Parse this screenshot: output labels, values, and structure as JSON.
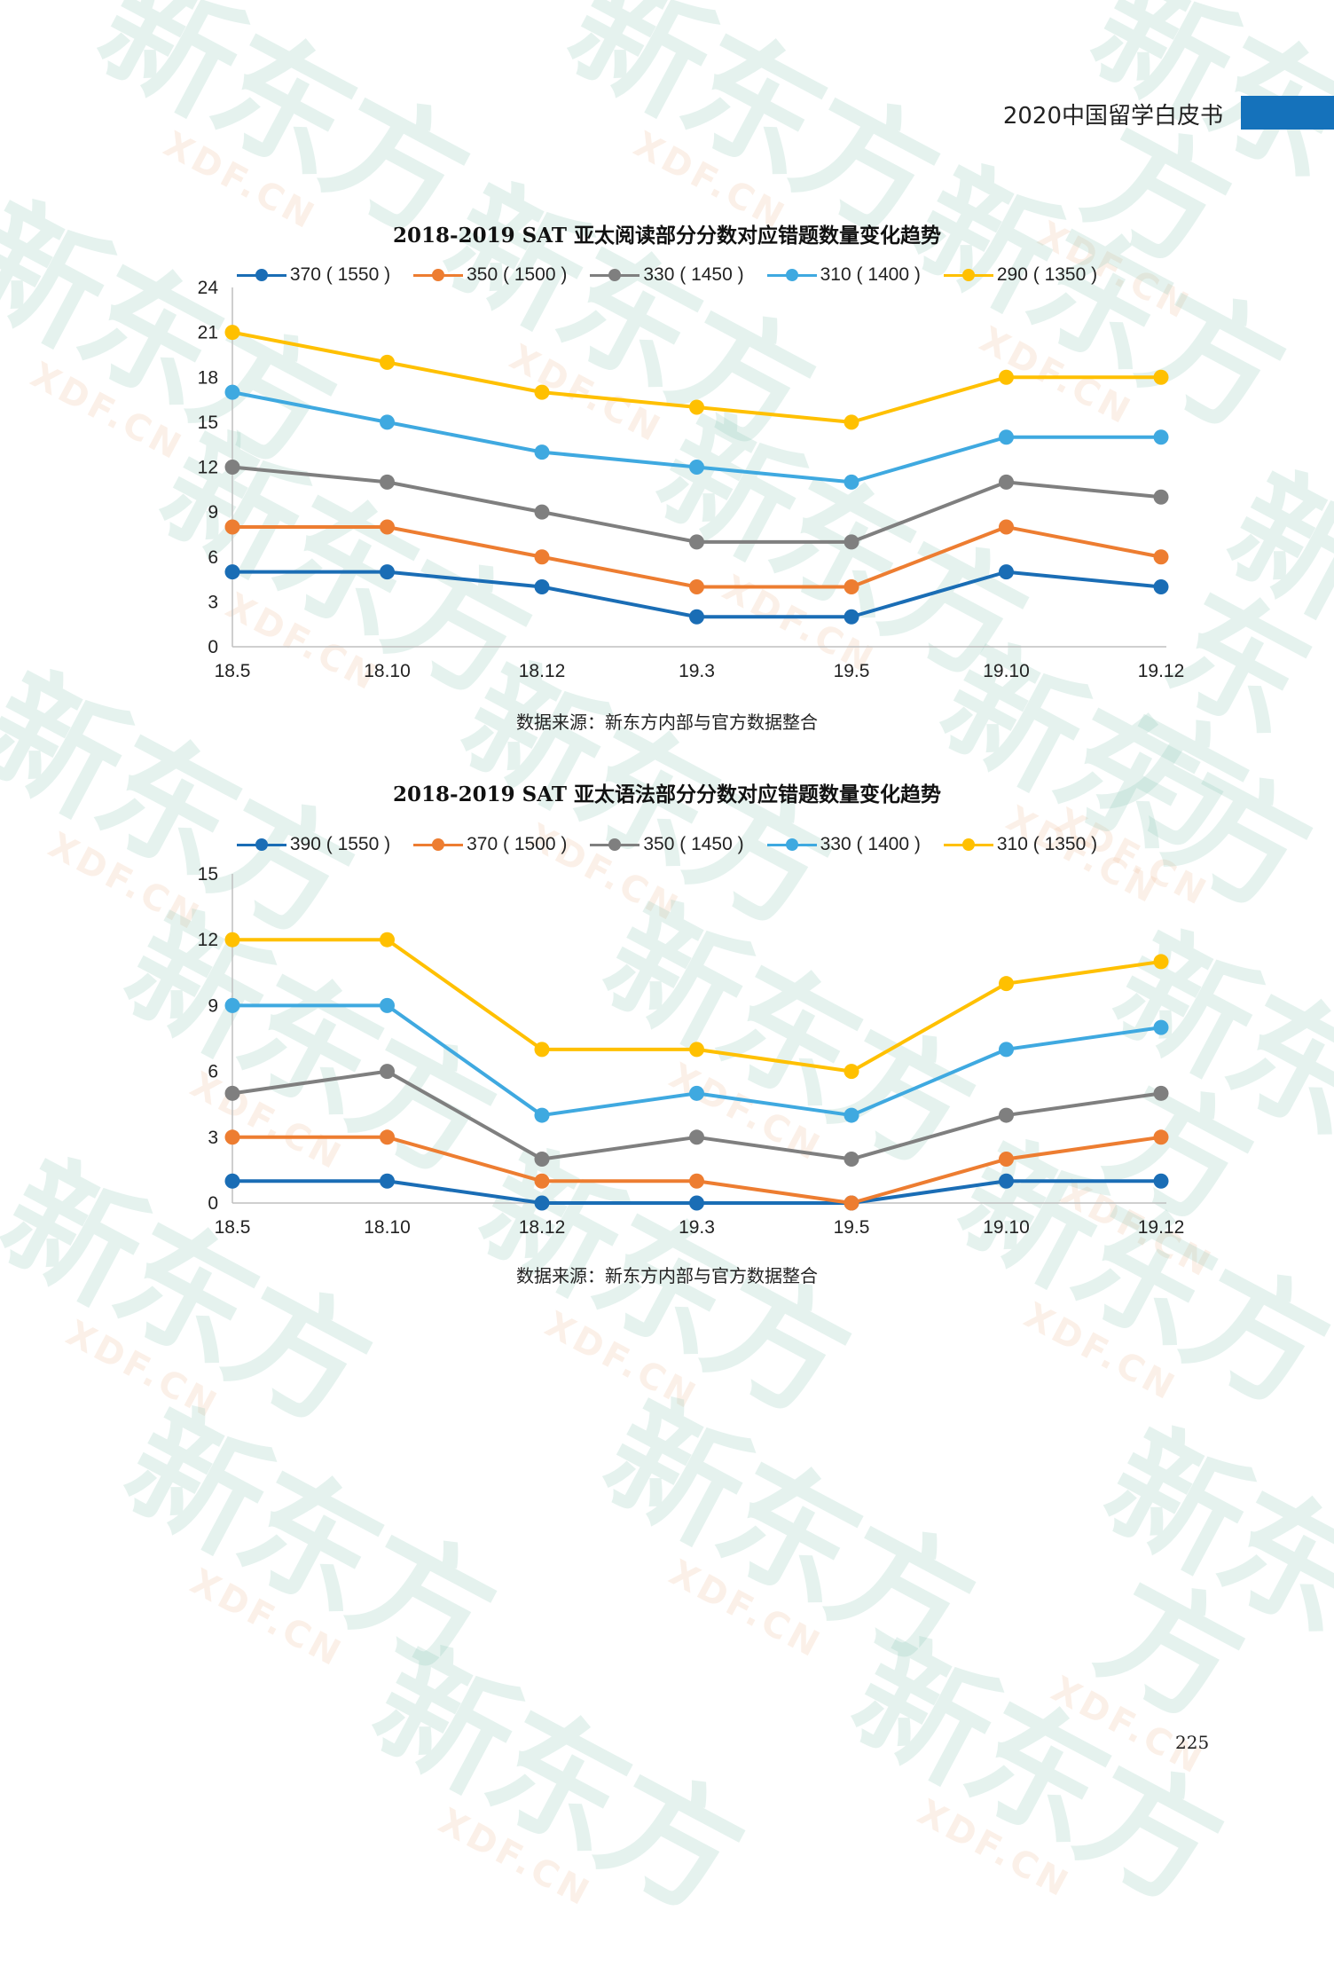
{
  "header": {
    "title": "2020中国留学白皮书",
    "accent_color": "#1572bb"
  },
  "watermark": {
    "brand": "新东方",
    "site": "XDF.CN",
    "color": "#7fc3b0"
  },
  "page_number": "225",
  "chart_data": [
    {
      "type": "line",
      "title": "2018-2019 SAT 亚太阅读部分分数对应错题数量变化趋势",
      "categories": [
        "18.5",
        "18.10",
        "18.12",
        "19.3",
        "19.5",
        "19.10",
        "19.12"
      ],
      "ylim": [
        0,
        24
      ],
      "yticks": [
        "0",
        "3",
        "6",
        "9",
        "12",
        "15",
        "18",
        "21",
        "24"
      ],
      "legend_position": "top",
      "source": "数据来源：新东方内部与官方数据整合",
      "series": [
        {
          "name": "370 ( 1550 )",
          "color": "#1a6db5",
          "values": [
            5,
            5,
            4,
            2,
            2,
            5,
            4
          ]
        },
        {
          "name": "350 ( 1500 )",
          "color": "#ed7d31",
          "values": [
            8,
            8,
            6,
            4,
            4,
            8,
            6
          ]
        },
        {
          "name": "330 ( 1450 )",
          "color": "#7f7f7f",
          "values": [
            12,
            11,
            9,
            7,
            7,
            11,
            10
          ]
        },
        {
          "name": "310 ( 1400 )",
          "color": "#3fa9e0",
          "values": [
            17,
            15,
            13,
            12,
            11,
            14,
            14
          ]
        },
        {
          "name": "290 ( 1350 )",
          "color": "#ffc000",
          "values": [
            21,
            19,
            17,
            16,
            15,
            18,
            18
          ]
        }
      ]
    },
    {
      "type": "line",
      "title": "2018-2019 SAT 亚太语法部分分数对应错题数量变化趋势",
      "categories": [
        "18.5",
        "18.10",
        "18.12",
        "19.3",
        "19.5",
        "19.10",
        "19.12"
      ],
      "ylim": [
        0,
        15
      ],
      "yticks": [
        "0",
        "3",
        "6",
        "9",
        "12",
        "15"
      ],
      "legend_position": "top",
      "source": "数据来源：新东方内部与官方数据整合",
      "series": [
        {
          "name": "390 ( 1550 )",
          "color": "#1a6db5",
          "values": [
            1,
            1,
            0,
            0,
            0,
            1,
            1
          ]
        },
        {
          "name": "370 ( 1500 )",
          "color": "#ed7d31",
          "values": [
            3,
            3,
            1,
            1,
            0,
            2,
            3
          ]
        },
        {
          "name": "350 ( 1450 )",
          "color": "#7f7f7f",
          "values": [
            5,
            6,
            2,
            3,
            2,
            4,
            5
          ]
        },
        {
          "name": "330 ( 1400 )",
          "color": "#3fa9e0",
          "values": [
            9,
            9,
            4,
            5,
            4,
            7,
            8
          ]
        },
        {
          "name": "310 ( 1350 )",
          "color": "#ffc000",
          "values": [
            12,
            12,
            7,
            7,
            6,
            10,
            11
          ]
        }
      ]
    }
  ]
}
